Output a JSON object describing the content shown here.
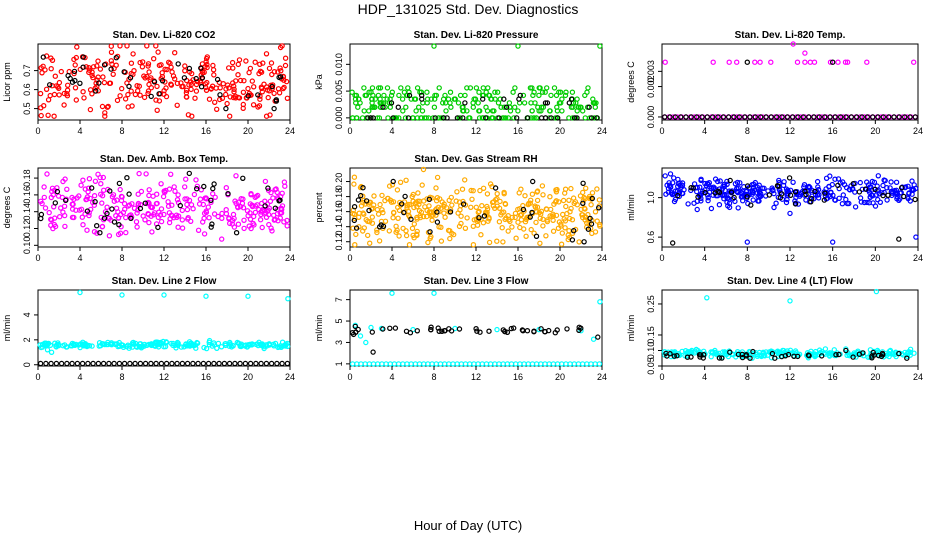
{
  "page": {
    "title": "HDP_131025  Std. Dev. Diagnostics",
    "x_caption": "Hour of Day (UTC)"
  },
  "chart_data": [
    {
      "type": "scatter",
      "title": "Stan. Dev. Li-820 CO2",
      "ylabel": "Licor ppm",
      "xlabel": "",
      "xlim": [
        0,
        24
      ],
      "ylim": [
        0.44,
        0.84
      ],
      "xticks": [
        "0",
        "4",
        "8",
        "12",
        "16",
        "20",
        "24"
      ],
      "yticks": [
        {
          "v": 0.5,
          "label": "0.5"
        },
        {
          "v": 0.6,
          "label": "0.6"
        },
        {
          "v": 0.7,
          "label": "0.7"
        }
      ],
      "series": [
        {
          "color": "#ff0000",
          "gen": {
            "kind": "noise",
            "n": 300,
            "base": 0.645,
            "spread": 0.085,
            "min": 0.46,
            "max": 0.83
          }
        },
        {
          "color": "#000000",
          "gen": {
            "kind": "noise",
            "n": 40,
            "base": 0.65,
            "spread": 0.07,
            "min": 0.5,
            "max": 0.8
          }
        }
      ]
    },
    {
      "type": "scatter",
      "title": "Stan. Dev. Li-820 Pressure",
      "ylabel": "kPa",
      "xlabel": "",
      "xlim": [
        0,
        24
      ],
      "ylim": [
        -0.0004,
        0.0138
      ],
      "xticks": [
        "0",
        "4",
        "8",
        "12",
        "16",
        "20",
        "24"
      ],
      "yticks": [
        {
          "v": 0.0,
          "label": "0.000"
        },
        {
          "v": 0.005,
          "label": "0.005"
        },
        {
          "v": 0.01,
          "label": "0.010"
        }
      ],
      "series": [
        {
          "color": "#00cc00",
          "gen": {
            "kind": "levels",
            "n": 260,
            "levels": [
              0.0,
              0.0056,
              0.0048,
              0.0042,
              0.0035,
              0.0028,
              0.002,
              0.0013
            ],
            "weights": [
              3,
              1,
              1,
              1,
              1,
              1,
              1,
              1
            ]
          },
          "extra": [
            [
              8.0,
              0.0134
            ],
            [
              16.0,
              0.0134
            ],
            [
              23.8,
              0.0134
            ]
          ]
        },
        {
          "color": "#000000",
          "gen": {
            "kind": "levels",
            "n": 40,
            "levels": [
              0.0,
              0.0042,
              0.0035,
              0.0028,
              0.002
            ],
            "weights": [
              4,
              1,
              1,
              1,
              1
            ]
          }
        }
      ]
    },
    {
      "type": "scatter",
      "title": "Stan. Dev. Li-820 Temp.",
      "ylabel": "degrees C",
      "xlabel": "",
      "xlim": [
        0,
        24
      ],
      "ylim": [
        -0.0002,
        0.0048
      ],
      "xticks": [
        "0",
        "4",
        "8",
        "12",
        "16",
        "20",
        "24"
      ],
      "yticks": [
        {
          "v": 0.0,
          "label": "0.000"
        },
        {
          "v": 0.002,
          "label": "0.002"
        },
        {
          "v": 0.003,
          "label": "0.003"
        }
      ],
      "series": [
        {
          "color": "#ff00ff",
          "gen": {
            "kind": "row",
            "n": 60,
            "y": 0.0
          },
          "extra": [
            [
              0.3,
              0.0036
            ],
            [
              4.8,
              0.0036
            ],
            [
              6.3,
              0.0036
            ],
            [
              7.0,
              0.0036
            ],
            [
              8.7,
              0.0036
            ],
            [
              9.2,
              0.0036
            ],
            [
              10.2,
              0.0036
            ],
            [
              12.7,
              0.0036
            ],
            [
              13.4,
              0.0036
            ],
            [
              13.9,
              0.0036
            ],
            [
              14.3,
              0.0036
            ],
            [
              15.8,
              0.0036
            ],
            [
              16.5,
              0.0036
            ],
            [
              17.2,
              0.0036
            ],
            [
              17.4,
              0.0036
            ],
            [
              19.2,
              0.0036
            ],
            [
              23.6,
              0.0036
            ],
            [
              12.3,
              0.0048
            ],
            [
              13.4,
              0.0042
            ]
          ]
        },
        {
          "color": "#000000",
          "gen": {
            "kind": "row",
            "n": 48,
            "y": 0.0
          },
          "extra": [
            [
              8.0,
              0.0036
            ],
            [
              16.0,
              0.0036
            ]
          ]
        }
      ]
    },
    {
      "type": "scatter",
      "title": "Stan. Dev. Amb. Box Temp.",
      "ylabel": "degrees C",
      "xlabel": "",
      "xlim": [
        0,
        24
      ],
      "ylim": [
        0.098,
        0.192
      ],
      "xticks": [
        "0",
        "4",
        "8",
        "12",
        "16",
        "20",
        "24"
      ],
      "yticks": [
        {
          "v": 0.1,
          "label": "0.10"
        },
        {
          "v": 0.12,
          "label": "0.12"
        },
        {
          "v": 0.14,
          "label": "0.14"
        },
        {
          "v": 0.16,
          "label": "0.16"
        },
        {
          "v": 0.18,
          "label": "0.18"
        }
      ],
      "series": [
        {
          "color": "#ff00ff",
          "gen": {
            "kind": "noise",
            "n": 320,
            "base": 0.145,
            "spread": 0.016,
            "min": 0.101,
            "max": 0.19
          }
        },
        {
          "color": "#000000",
          "gen": {
            "kind": "noise",
            "n": 40,
            "base": 0.148,
            "spread": 0.018,
            "min": 0.115,
            "max": 0.19
          }
        }
      ]
    },
    {
      "type": "scatter",
      "title": "Stan. Dev. Gas Stream RH",
      "ylabel": "percent",
      "xlabel": "",
      "xlim": [
        0,
        24
      ],
      "ylim": [
        0.113,
        0.218
      ],
      "xticks": [
        "0",
        "4",
        "8",
        "12",
        "16",
        "20",
        "24"
      ],
      "yticks": [
        {
          "v": 0.12,
          "label": "0.12"
        },
        {
          "v": 0.14,
          "label": "0.14"
        },
        {
          "v": 0.16,
          "label": "0.16"
        },
        {
          "v": 0.18,
          "label": "0.18"
        },
        {
          "v": 0.2,
          "label": "0.20"
        }
      ],
      "series": [
        {
          "color": "#ffaa00",
          "gen": {
            "kind": "noise",
            "n": 380,
            "base": 0.16,
            "spread": 0.02,
            "min": 0.116,
            "max": 0.216
          }
        },
        {
          "color": "#000000",
          "gen": {
            "kind": "noise",
            "n": 40,
            "base": 0.158,
            "spread": 0.022,
            "min": 0.118,
            "max": 0.2
          }
        }
      ]
    },
    {
      "type": "scatter",
      "title": "Stan. Dev. Sample Flow",
      "ylabel": "ml/min",
      "xlabel": "",
      "xlim": [
        0,
        24
      ],
      "ylim": [
        0.5,
        1.3
      ],
      "xticks": [
        "0",
        "4",
        "8",
        "12",
        "16",
        "20",
        "24"
      ],
      "yticks": [
        {
          "v": 0.6,
          "label": "0.6"
        },
        {
          "v": 1.0,
          "label": "1.0"
        }
      ],
      "series": [
        {
          "color": "#0000ff",
          "gen": {
            "kind": "noise",
            "n": 330,
            "base": 1.06,
            "spread": 0.065,
            "min": 0.85,
            "max": 1.28
          },
          "extra": [
            [
              0.3,
              1.22
            ],
            [
              0.8,
              1.24
            ],
            [
              1.1,
              1.2
            ],
            [
              3.3,
              0.88
            ],
            [
              8.0,
              0.55
            ],
            [
              16.0,
              0.55
            ],
            [
              23.8,
              0.6
            ],
            [
              12.0,
              0.84
            ],
            [
              10.5,
              0.9
            ]
          ]
        },
        {
          "color": "#000000",
          "gen": {
            "kind": "noise",
            "n": 40,
            "base": 1.04,
            "spread": 0.06,
            "min": 0.85,
            "max": 1.2
          },
          "extra": [
            [
              1.0,
              0.54
            ],
            [
              22.2,
              0.58
            ]
          ]
        }
      ]
    },
    {
      "type": "scatter",
      "title": "Stan. Dev. Line 2 Flow",
      "ylabel": "ml/min",
      "xlabel": "",
      "xlim": [
        0,
        24
      ],
      "ylim": [
        -0.1,
        6.0
      ],
      "xticks": [
        "0",
        "4",
        "8",
        "12",
        "16",
        "20",
        "24"
      ],
      "yticks": [
        {
          "v": 0,
          "label": "0"
        },
        {
          "v": 2,
          "label": "2"
        },
        {
          "v": 4,
          "label": "4"
        }
      ],
      "series": [
        {
          "color": "#00ffff",
          "gen": {
            "kind": "noise",
            "n": 230,
            "base": 1.6,
            "spread": 0.12,
            "min": 1.1,
            "max": 2.1
          },
          "extra": [
            [
              4.0,
              5.8
            ],
            [
              8.0,
              5.6
            ],
            [
              12.0,
              5.6
            ],
            [
              16.0,
              5.5
            ],
            [
              20.0,
              5.5
            ],
            [
              23.8,
              5.3
            ],
            [
              0.9,
              1.2
            ],
            [
              1.3,
              1.0
            ]
          ]
        },
        {
          "color": "#000000",
          "gen": {
            "kind": "row",
            "n": 48,
            "y": 0.1
          }
        }
      ]
    },
    {
      "type": "scatter",
      "title": "Stan. Dev. Line 3 Flow",
      "ylabel": "ml/min",
      "xlabel": "",
      "xlim": [
        0,
        24
      ],
      "ylim": [
        0.8,
        7.9
      ],
      "xticks": [
        "0",
        "4",
        "8",
        "12",
        "16",
        "20",
        "24"
      ],
      "yticks": [
        {
          "v": 1,
          "label": "1"
        },
        {
          "v": 3,
          "label": "3"
        },
        {
          "v": 5,
          "label": "5"
        },
        {
          "v": 7,
          "label": "7"
        }
      ],
      "series": [
        {
          "color": "#00ffff",
          "gen": {
            "kind": "row",
            "n": 60,
            "y": 1.0
          },
          "extra": [
            [
              0.5,
              4.6
            ],
            [
              1.0,
              3.6
            ],
            [
              1.5,
              3.0
            ],
            [
              4.0,
              7.6
            ],
            [
              8.0,
              7.6
            ],
            [
              23.8,
              6.8
            ],
            [
              2.0,
              4.4
            ],
            [
              3.0,
              4.3
            ],
            [
              6.0,
              4.2
            ],
            [
              10.0,
              4.3
            ],
            [
              14.0,
              4.2
            ],
            [
              18.0,
              4.2
            ],
            [
              22.0,
              4.1
            ],
            [
              23.2,
              3.3
            ]
          ]
        },
        {
          "color": "#000000",
          "gen": {
            "kind": "noise",
            "n": 48,
            "base": 4.1,
            "spread": 0.18,
            "min": 3.7,
            "max": 4.6
          },
          "extra": [
            [
              2.2,
              2.1
            ],
            [
              0.5,
              4.5
            ],
            [
              23.6,
              3.5
            ]
          ]
        }
      ]
    },
    {
      "type": "scatter",
      "title": "Stan. Dev. Line 4 (LT) Flow",
      "ylabel": "ml/min",
      "xlabel": "",
      "xlim": [
        0,
        24
      ],
      "ylim": [
        0.05,
        0.295
      ],
      "xticks": [
        "0",
        "4",
        "8",
        "12",
        "16",
        "20",
        "24"
      ],
      "yticks": [
        {
          "v": 0.05,
          "label": "0.05"
        },
        {
          "v": 0.1,
          "label": "0.10"
        },
        {
          "v": 0.15,
          "label": "0.15"
        },
        {
          "v": 0.25,
          "label": "0.25"
        }
      ],
      "series": [
        {
          "color": "#00ffff",
          "gen": {
            "kind": "noise",
            "n": 230,
            "base": 0.09,
            "spread": 0.006,
            "min": 0.075,
            "max": 0.105
          },
          "extra": [
            [
              4.2,
              0.27
            ],
            [
              12.0,
              0.26
            ],
            [
              20.1,
              0.29
            ]
          ]
        },
        {
          "color": "#000000",
          "gen": {
            "kind": "noise",
            "n": 48,
            "base": 0.085,
            "spread": 0.006,
            "min": 0.075,
            "max": 0.1
          }
        }
      ]
    }
  ]
}
